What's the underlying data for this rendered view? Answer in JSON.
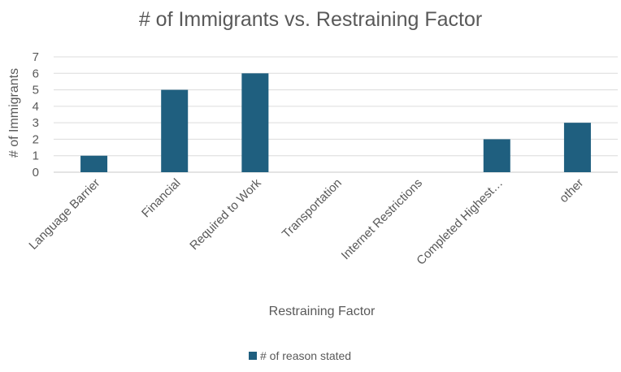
{
  "chart_data": {
    "type": "bar",
    "title": "# of Immigrants vs. Restraining Factor",
    "xlabel": "Restraining Factor",
    "ylabel": "# of Immigrants",
    "categories": [
      "Language Barrier",
      "Financial",
      "Required to Work",
      "Transportation",
      "Internet Restrictions",
      "Completed Highest…",
      "other"
    ],
    "series": [
      {
        "name": "# of reason stated",
        "values": [
          1,
          5,
          6,
          0,
          0,
          2,
          3
        ],
        "color": "#1f5f7f"
      }
    ],
    "ylim": [
      0,
      7
    ],
    "yticks": [
      0,
      1,
      2,
      3,
      4,
      5,
      6,
      7
    ],
    "grid": true,
    "legend": "bottom"
  }
}
